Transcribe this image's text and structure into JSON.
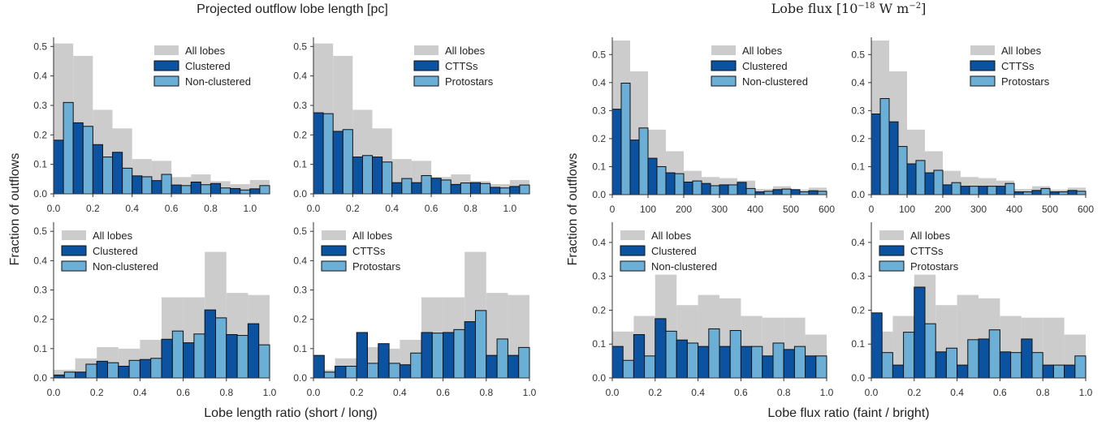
{
  "figure": {
    "top_left_title": "Projected outflow lobe length [pc]",
    "top_right_title": "Lobe flux [10",
    "top_right_exponent": "−18",
    "top_right_units": " W m",
    "top_right_units_exp": "−2",
    "top_right_close": "]",
    "left_ylabel": "Fraction of outflows",
    "right_ylabel": "Fraction of outflows",
    "bottom_left_xlabel": "Lobe length ratio (short / long)",
    "bottom_right_xlabel": "Lobe flux ratio (faint / bright)"
  },
  "colors": {
    "all": "#cccccc",
    "dark": "#0b53a0",
    "light": "#6baed6"
  },
  "chart_data": [
    {
      "type": "bar",
      "panel": "length-clustered",
      "xlim": [
        0,
        1.1
      ],
      "ylim": [
        0,
        0.52
      ],
      "xticks": [
        "0.0",
        "0.2",
        "0.4",
        "0.6",
        "0.8",
        "1.0"
      ],
      "xtick_vals": [
        0,
        0.2,
        0.4,
        0.6,
        0.8,
        1.0
      ],
      "yticks": [
        "0.0",
        "0.1",
        "0.2",
        "0.3",
        "0.4",
        "0.5"
      ],
      "ytick_vals": [
        0,
        0.1,
        0.2,
        0.3,
        0.4,
        0.5
      ],
      "legend": [
        "All lobes",
        "Clustered",
        "Non-clustered"
      ],
      "bg_edges": [
        0,
        0.1,
        0.2,
        0.3,
        0.4,
        0.5,
        0.6,
        0.7,
        0.8,
        0.9,
        1.0,
        1.1
      ],
      "bg_values": [
        0.51,
        0.468,
        0.285,
        0.222,
        0.118,
        0.112,
        0.057,
        0.066,
        0.043,
        0.033,
        0.047
      ],
      "fg_edges": [
        0,
        0.05,
        0.1,
        0.15,
        0.2,
        0.25,
        0.3,
        0.35,
        0.4,
        0.45,
        0.5,
        0.55,
        0.6,
        0.65,
        0.7,
        0.75,
        0.8,
        0.85,
        0.9,
        0.95,
        1.0,
        1.05,
        1.1
      ],
      "s1": [
        0.182,
        0,
        0.241,
        0,
        0.167,
        0,
        0.141,
        0,
        0.061,
        0,
        0.045,
        0,
        0.03,
        0,
        0.04,
        0,
        0.035,
        0,
        0.018,
        0,
        0.017,
        0
      ],
      "s2": [
        0,
        0.31,
        0,
        0.229,
        0,
        0.125,
        0,
        0.087,
        0,
        0.058,
        0,
        0.066,
        0,
        0.028,
        0,
        0.031,
        0,
        0.02,
        0,
        0.013,
        0,
        0.028
      ]
    },
    {
      "type": "bar",
      "panel": "length-ctts",
      "xlim": [
        0,
        1.1
      ],
      "ylim": [
        0,
        0.52
      ],
      "xticks": [
        "0.0",
        "0.2",
        "0.4",
        "0.6",
        "0.8",
        "1.0"
      ],
      "xtick_vals": [
        0,
        0.2,
        0.4,
        0.6,
        0.8,
        1.0
      ],
      "yticks": [
        "0.0",
        "0.1",
        "0.2",
        "0.3",
        "0.4",
        "0.5"
      ],
      "ytick_vals": [
        0,
        0.1,
        0.2,
        0.3,
        0.4,
        0.5
      ],
      "legend": [
        "All lobes",
        "CTTSs",
        "Protostars"
      ],
      "bg_edges": [
        0,
        0.1,
        0.2,
        0.3,
        0.4,
        0.5,
        0.6,
        0.7,
        0.8,
        0.9,
        1.0,
        1.1
      ],
      "bg_values": [
        0.51,
        0.468,
        0.285,
        0.222,
        0.118,
        0.112,
        0.057,
        0.066,
        0.043,
        0.033,
        0.047
      ],
      "fg_edges": [
        0,
        0.05,
        0.1,
        0.15,
        0.2,
        0.25,
        0.3,
        0.35,
        0.4,
        0.45,
        0.5,
        0.55,
        0.6,
        0.65,
        0.7,
        0.75,
        0.8,
        0.85,
        0.9,
        0.95,
        1.0,
        1.05,
        1.1
      ],
      "s1": [
        0.275,
        0,
        0.212,
        0,
        0.125,
        0,
        0.125,
        0,
        0.038,
        0,
        0.038,
        0,
        0.053,
        0,
        0.032,
        0,
        0.038,
        0,
        0.022,
        0,
        0.025,
        0
      ],
      "s2": [
        0,
        0.272,
        0,
        0.218,
        0,
        0.13,
        0,
        0.108,
        0,
        0.052,
        0,
        0.062,
        0,
        0.047,
        0,
        0.037,
        0,
        0.035,
        0,
        0.02,
        0,
        0.03
      ]
    },
    {
      "type": "bar",
      "panel": "flux-clustered",
      "xlim": [
        0,
        600
      ],
      "ylim": [
        0,
        0.55
      ],
      "xticks": [
        "0",
        "100",
        "200",
        "300",
        "400",
        "500",
        "600"
      ],
      "xtick_vals": [
        0,
        100,
        200,
        300,
        400,
        500,
        600
      ],
      "yticks": [
        "0.0",
        "0.1",
        "0.2",
        "0.3",
        "0.4",
        "0.5"
      ],
      "ytick_vals": [
        0,
        0.1,
        0.2,
        0.3,
        0.4,
        0.5
      ],
      "legend": [
        "All lobes",
        "Clustered",
        "Non-clustered"
      ],
      "bg_edges": [
        0,
        50,
        100,
        150,
        200,
        250,
        300,
        350,
        400,
        450,
        500,
        550,
        600
      ],
      "bg_values": [
        0.55,
        0.44,
        0.232,
        0.155,
        0.085,
        0.063,
        0.059,
        0.05,
        0.02,
        0.03,
        0.018,
        0.025
      ],
      "fg_edges": [
        0,
        25,
        50,
        75,
        100,
        125,
        150,
        175,
        200,
        225,
        250,
        275,
        300,
        325,
        350,
        375,
        400,
        425,
        450,
        475,
        500,
        525,
        550,
        575,
        600
      ],
      "s1": [
        0.305,
        0,
        0.195,
        0,
        0.13,
        0,
        0.078,
        0,
        0.045,
        0,
        0.04,
        0,
        0.035,
        0,
        0.044,
        0,
        0.01,
        0,
        0.018,
        0,
        0.018,
        0,
        0.014,
        0
      ],
      "s2": [
        0,
        0.398,
        0,
        0.238,
        0,
        0.1,
        0,
        0.075,
        0,
        0.049,
        0,
        0.032,
        0,
        0.035,
        0,
        0.022,
        0,
        0.012,
        0,
        0.02,
        0,
        0.01,
        0,
        0.012
      ]
    },
    {
      "type": "bar",
      "panel": "flux-ctts",
      "xlim": [
        0,
        600
      ],
      "ylim": [
        0,
        0.55
      ],
      "xticks": [
        "0",
        "100",
        "200",
        "300",
        "400",
        "500",
        "600"
      ],
      "xtick_vals": [
        0,
        100,
        200,
        300,
        400,
        500,
        600
      ],
      "yticks": [
        "0.0",
        "0.1",
        "0.2",
        "0.3",
        "0.4",
        "0.5"
      ],
      "ytick_vals": [
        0,
        0.1,
        0.2,
        0.3,
        0.4,
        0.5
      ],
      "legend": [
        "All lobes",
        "CTTSs",
        "Protostars"
      ],
      "bg_edges": [
        0,
        50,
        100,
        150,
        200,
        250,
        300,
        350,
        400,
        450,
        500,
        550,
        600
      ],
      "bg_values": [
        0.55,
        0.44,
        0.232,
        0.155,
        0.085,
        0.063,
        0.059,
        0.05,
        0.02,
        0.03,
        0.018,
        0.025
      ],
      "fg_edges": [
        0,
        25,
        50,
        75,
        100,
        125,
        150,
        175,
        200,
        225,
        250,
        275,
        300,
        325,
        350,
        375,
        400,
        425,
        450,
        475,
        500,
        525,
        550,
        575,
        600
      ],
      "s1": [
        0.288,
        0,
        0.26,
        0,
        0.11,
        0,
        0.078,
        0,
        0.035,
        0,
        0.03,
        0,
        0.03,
        0,
        0.03,
        0,
        0.01,
        0,
        0.015,
        0,
        0.01,
        0,
        0.015,
        0
      ],
      "s2": [
        0,
        0.343,
        0,
        0.172,
        0,
        0.122,
        0,
        0.087,
        0,
        0.043,
        0,
        0.03,
        0,
        0.03,
        0,
        0.04,
        0,
        0.01,
        0,
        0.022,
        0,
        0.01,
        0,
        0.012
      ]
    },
    {
      "type": "bar",
      "panel": "length-ratio-clustered",
      "xlim": [
        0,
        1.0
      ],
      "ylim": [
        0,
        0.52
      ],
      "xticks": [
        "0.0",
        "0.2",
        "0.4",
        "0.6",
        "0.8",
        "1.0"
      ],
      "xtick_vals": [
        0,
        0.2,
        0.4,
        0.6,
        0.8,
        1.0
      ],
      "yticks": [
        "0.0",
        "0.1",
        "0.2",
        "0.3",
        "0.4",
        "0.5"
      ],
      "ytick_vals": [
        0,
        0.1,
        0.2,
        0.3,
        0.4,
        0.5
      ],
      "legend": [
        "All lobes",
        "Clustered",
        "Non-clustered"
      ],
      "bg_edges": [
        0,
        0.1,
        0.2,
        0.3,
        0.4,
        0.5,
        0.6,
        0.7,
        0.8,
        0.9,
        1.0
      ],
      "bg_values": [
        0.028,
        0.067,
        0.105,
        0.1,
        0.13,
        0.275,
        0.275,
        0.43,
        0.29,
        0.283
      ],
      "fg_edges": [
        0,
        0.05,
        0.1,
        0.15,
        0.2,
        0.25,
        0.3,
        0.35,
        0.4,
        0.45,
        0.5,
        0.55,
        0.6,
        0.65,
        0.7,
        0.75,
        0.8,
        0.85,
        0.9,
        0.95,
        1.0
      ],
      "s1": [
        0.01,
        0,
        0.02,
        0,
        0.057,
        0,
        0.04,
        0,
        0.063,
        0,
        0.132,
        0,
        0.12,
        0,
        0.232,
        0,
        0.148,
        0,
        0.185,
        0
      ],
      "s2": [
        0,
        0.02,
        0,
        0.047,
        0,
        0.052,
        0,
        0.06,
        0,
        0.067,
        0,
        0.16,
        0,
        0.15,
        0,
        0.205,
        0,
        0.145,
        0,
        0.113
      ]
    },
    {
      "type": "bar",
      "panel": "length-ratio-ctts",
      "xlim": [
        0,
        1.0
      ],
      "ylim": [
        0,
        0.52
      ],
      "xticks": [
        "0.0",
        "0.2",
        "0.4",
        "0.6",
        "0.8",
        "1.0"
      ],
      "xtick_vals": [
        0,
        0.2,
        0.4,
        0.6,
        0.8,
        1.0
      ],
      "yticks": [
        "0.0",
        "0.1",
        "0.2",
        "0.3",
        "0.4",
        "0.5"
      ],
      "ytick_vals": [
        0,
        0.1,
        0.2,
        0.3,
        0.4,
        0.5
      ],
      "legend": [
        "All lobes",
        "CTTSs",
        "Protostars"
      ],
      "bg_edges": [
        0,
        0.1,
        0.2,
        0.3,
        0.4,
        0.5,
        0.6,
        0.7,
        0.8,
        0.9,
        1.0
      ],
      "bg_values": [
        0.028,
        0.067,
        0.105,
        0.1,
        0.13,
        0.275,
        0.275,
        0.43,
        0.29,
        0.283
      ],
      "fg_edges": [
        0,
        0.05,
        0.1,
        0.15,
        0.2,
        0.25,
        0.3,
        0.35,
        0.4,
        0.45,
        0.5,
        0.55,
        0.6,
        0.65,
        0.7,
        0.75,
        0.8,
        0.85,
        0.9,
        0.95,
        1.0
      ],
      "s1": [
        0.077,
        0,
        0.04,
        0,
        0.155,
        0,
        0.117,
        0,
        0.045,
        0,
        0.155,
        0,
        0.155,
        0,
        0.192,
        0,
        0.077,
        0,
        0.077,
        0
      ],
      "s2": [
        0,
        0.02,
        0,
        0.04,
        0,
        0.05,
        0,
        0.05,
        0,
        0.085,
        0,
        0.153,
        0,
        0.165,
        0,
        0.23,
        0,
        0.133,
        0,
        0.104
      ]
    },
    {
      "type": "bar",
      "panel": "flux-ratio-clustered",
      "xlim": [
        0,
        1.0
      ],
      "ylim": [
        0,
        0.45
      ],
      "xticks": [
        "0.0",
        "0.2",
        "0.4",
        "0.6",
        "0.8",
        "1.0"
      ],
      "xtick_vals": [
        0,
        0.2,
        0.4,
        0.6,
        0.8,
        1.0
      ],
      "yticks": [
        "0.0",
        "0.1",
        "0.2",
        "0.3",
        "0.4"
      ],
      "ytick_vals": [
        0,
        0.1,
        0.2,
        0.3,
        0.4
      ],
      "legend": [
        "All lobes",
        "Clustered",
        "Non-clustered"
      ],
      "bg_edges": [
        0,
        0.1,
        0.2,
        0.3,
        0.4,
        0.5,
        0.6,
        0.7,
        0.8,
        0.9,
        1.0
      ],
      "bg_values": [
        0.137,
        0.183,
        0.305,
        0.215,
        0.245,
        0.235,
        0.183,
        0.178,
        0.178,
        0.128
      ],
      "fg_edges": [
        0,
        0.05,
        0.1,
        0.15,
        0.2,
        0.25,
        0.3,
        0.35,
        0.4,
        0.45,
        0.5,
        0.55,
        0.6,
        0.65,
        0.7,
        0.75,
        0.8,
        0.85,
        0.9,
        0.95,
        1.0
      ],
      "s1": [
        0.093,
        0,
        0.128,
        0,
        0.175,
        0,
        0.112,
        0,
        0.093,
        0,
        0.093,
        0,
        0.093,
        0,
        0.065,
        0,
        0.084,
        0,
        0.065,
        0
      ],
      "s2": [
        0,
        0.052,
        0,
        0.065,
        0,
        0.138,
        0,
        0.103,
        0,
        0.145,
        0,
        0.14,
        0,
        0.093,
        0,
        0.103,
        0,
        0.093,
        0,
        0.065
      ]
    },
    {
      "type": "bar",
      "panel": "flux-ratio-ctts",
      "xlim": [
        0,
        1.0
      ],
      "ylim": [
        0,
        0.45
      ],
      "xticks": [
        "0.0",
        "0.2",
        "0.4",
        "0.6",
        "0.8",
        "1.0"
      ],
      "xtick_vals": [
        0,
        0.2,
        0.4,
        0.6,
        0.8,
        1.0
      ],
      "yticks": [
        "0.0",
        "0.1",
        "0.2",
        "0.3",
        "0.4"
      ],
      "ytick_vals": [
        0,
        0.1,
        0.2,
        0.3,
        0.4
      ],
      "legend": [
        "All lobes",
        "CTTSs",
        "Protostars"
      ],
      "bg_edges": [
        0,
        0.1,
        0.2,
        0.3,
        0.4,
        0.5,
        0.6,
        0.7,
        0.8,
        0.9,
        1.0
      ],
      "bg_values": [
        0.137,
        0.183,
        0.305,
        0.215,
        0.245,
        0.235,
        0.183,
        0.178,
        0.178,
        0.128
      ],
      "fg_edges": [
        0,
        0.05,
        0.1,
        0.15,
        0.2,
        0.25,
        0.3,
        0.35,
        0.4,
        0.45,
        0.5,
        0.55,
        0.6,
        0.65,
        0.7,
        0.75,
        0.8,
        0.85,
        0.9,
        0.95,
        1.0
      ],
      "s1": [
        0.192,
        0,
        0.038,
        0,
        0.268,
        0,
        0.077,
        0,
        0.038,
        0,
        0.115,
        0,
        0.077,
        0,
        0.115,
        0,
        0.038,
        0,
        0.038,
        0
      ],
      "s2": [
        0,
        0.075,
        0,
        0.135,
        0,
        0.16,
        0,
        0.088,
        0,
        0.113,
        0,
        0.142,
        0,
        0.075,
        0,
        0.075,
        0,
        0.038,
        0,
        0.065
      ]
    }
  ]
}
